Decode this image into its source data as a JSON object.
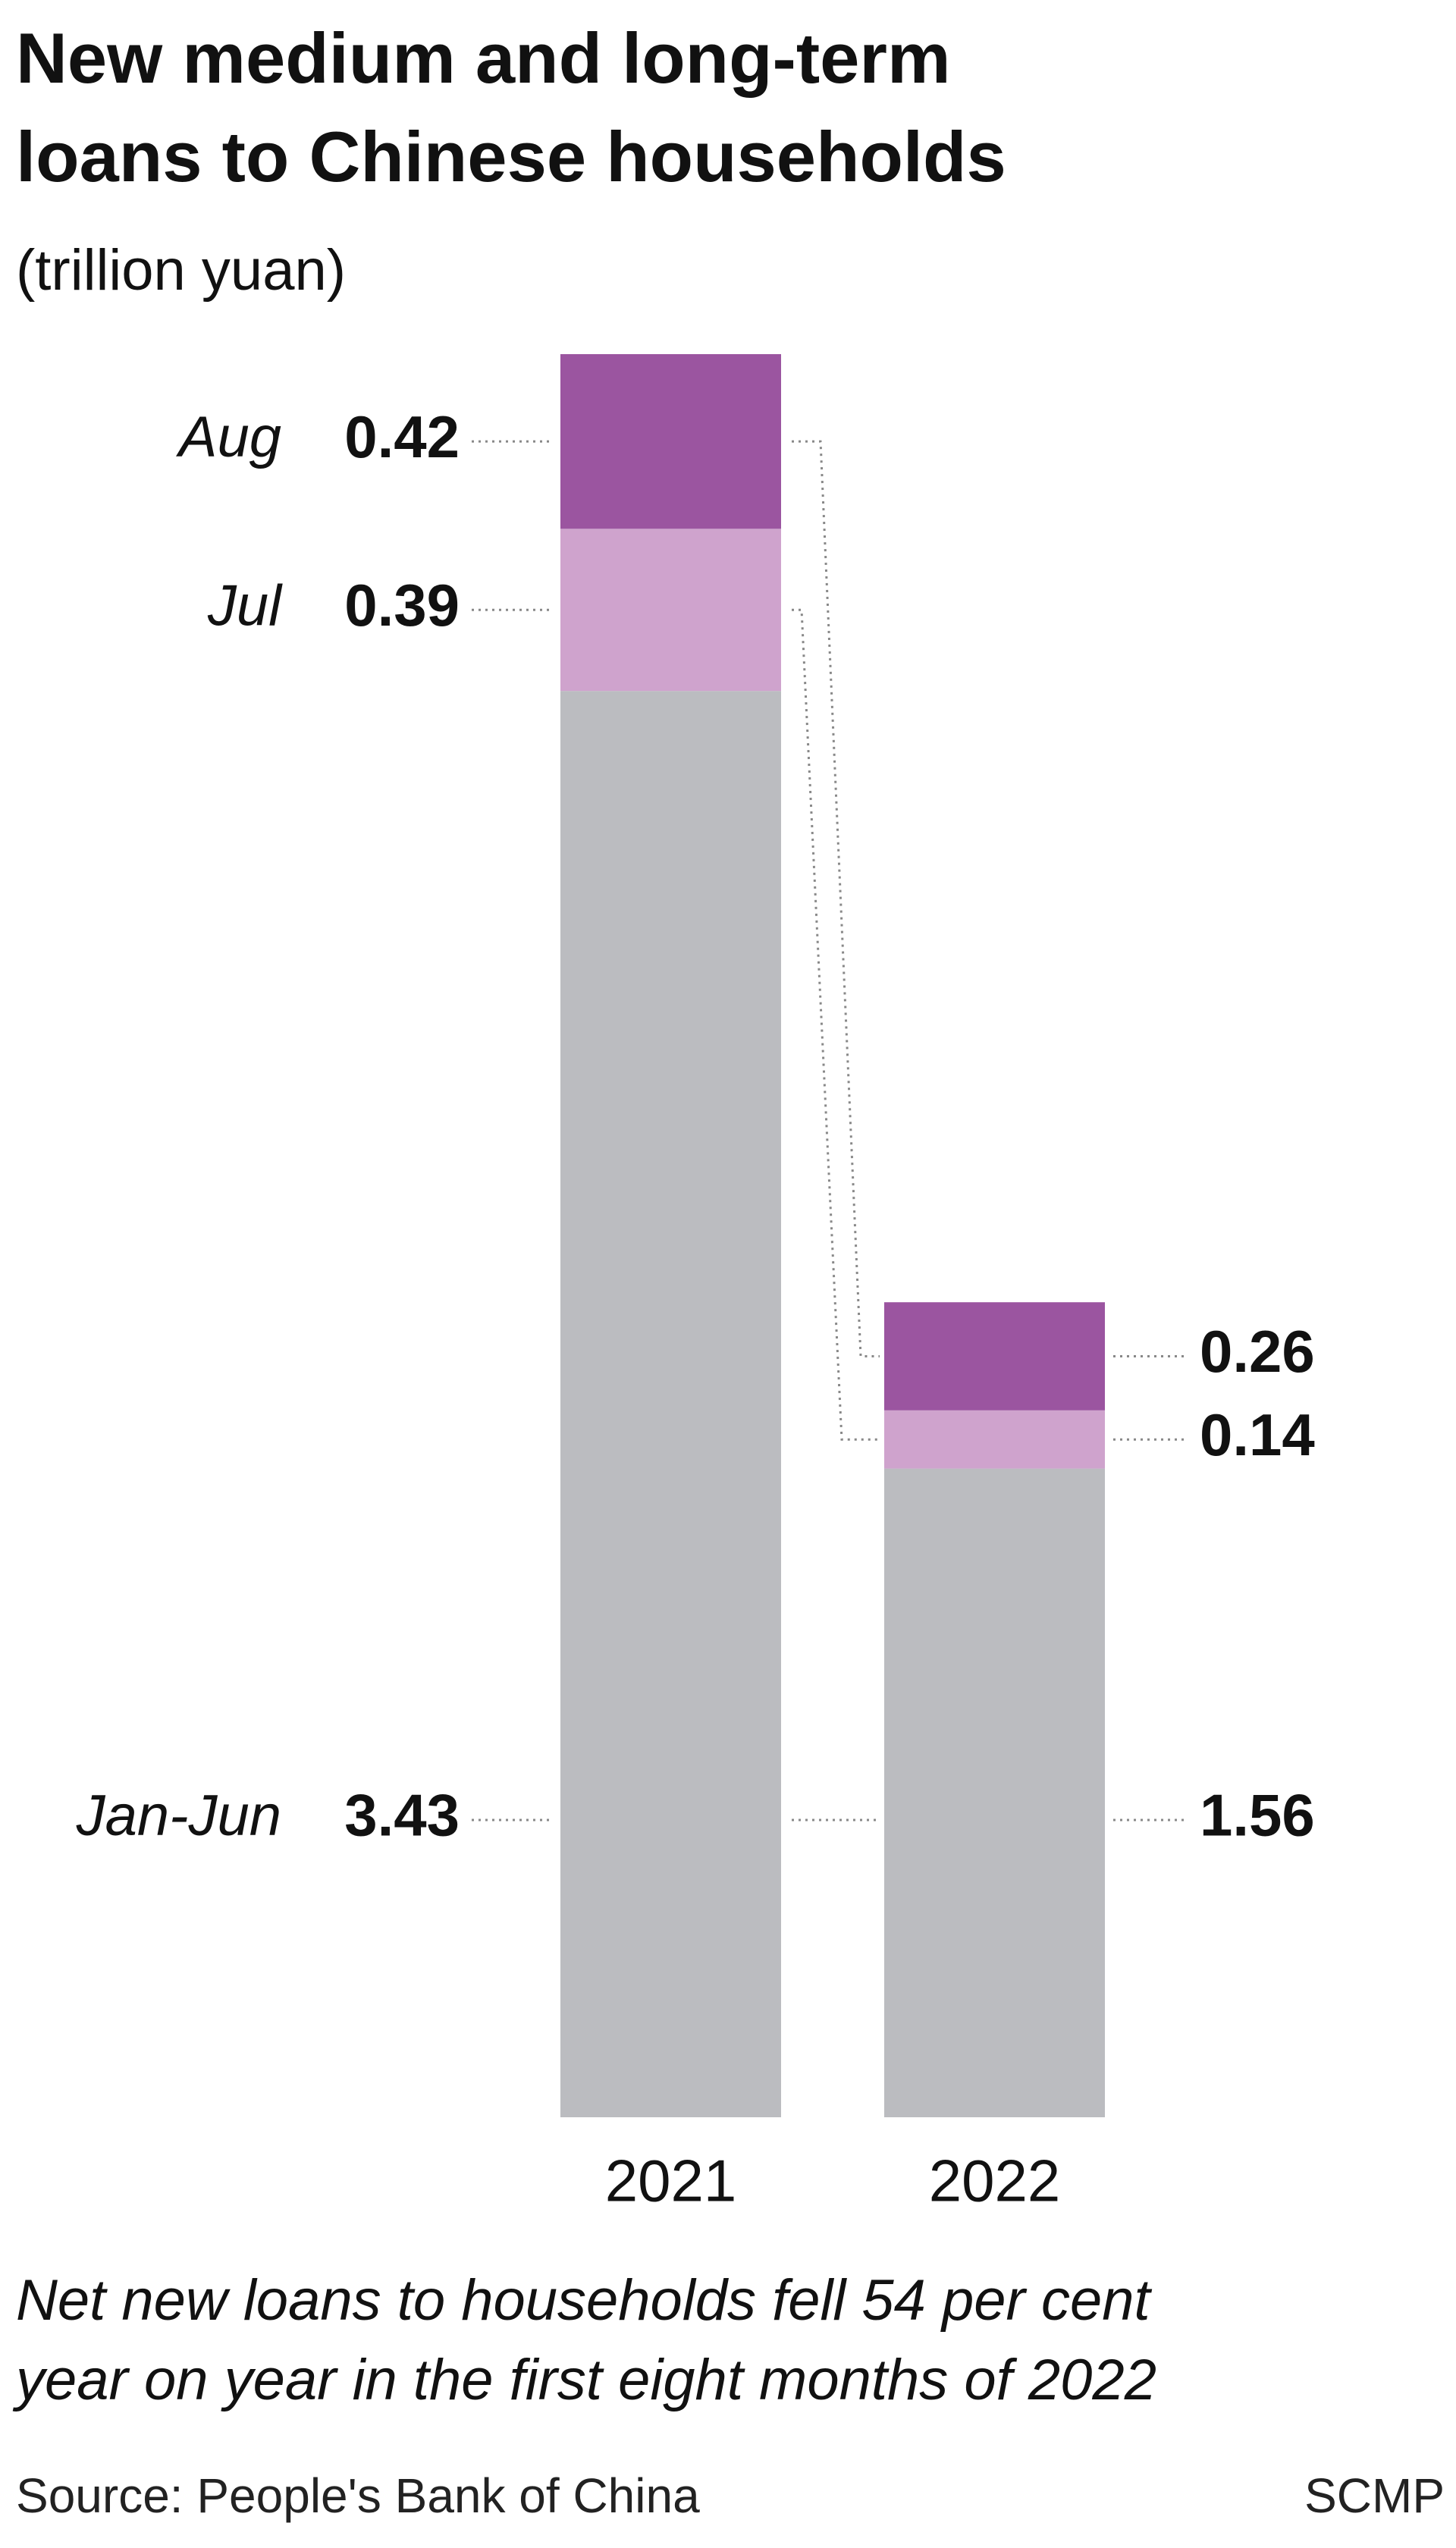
{
  "chart_data": {
    "type": "stacked_bar",
    "title": [
      "New medium and long-term",
      "loans to Chinese households"
    ],
    "subtitle": "(trillion yuan)",
    "categories": [
      "2021",
      "2022"
    ],
    "series": [
      {
        "name": "Jan-Jun",
        "color": "#bbbcc0",
        "values": [
          3.43,
          1.56
        ]
      },
      {
        "name": "Jul",
        "color": "#cfa3cd",
        "values": [
          0.39,
          0.14
        ]
      },
      {
        "name": "Aug",
        "color": "#9b55a0",
        "values": [
          0.42,
          0.26
        ]
      }
    ],
    "note": [
      "Net new loans to households fell 54 per cent",
      "year on year in the first eight months of 2022"
    ],
    "source": "Source: People's Bank of China",
    "credit": "SCMP"
  }
}
